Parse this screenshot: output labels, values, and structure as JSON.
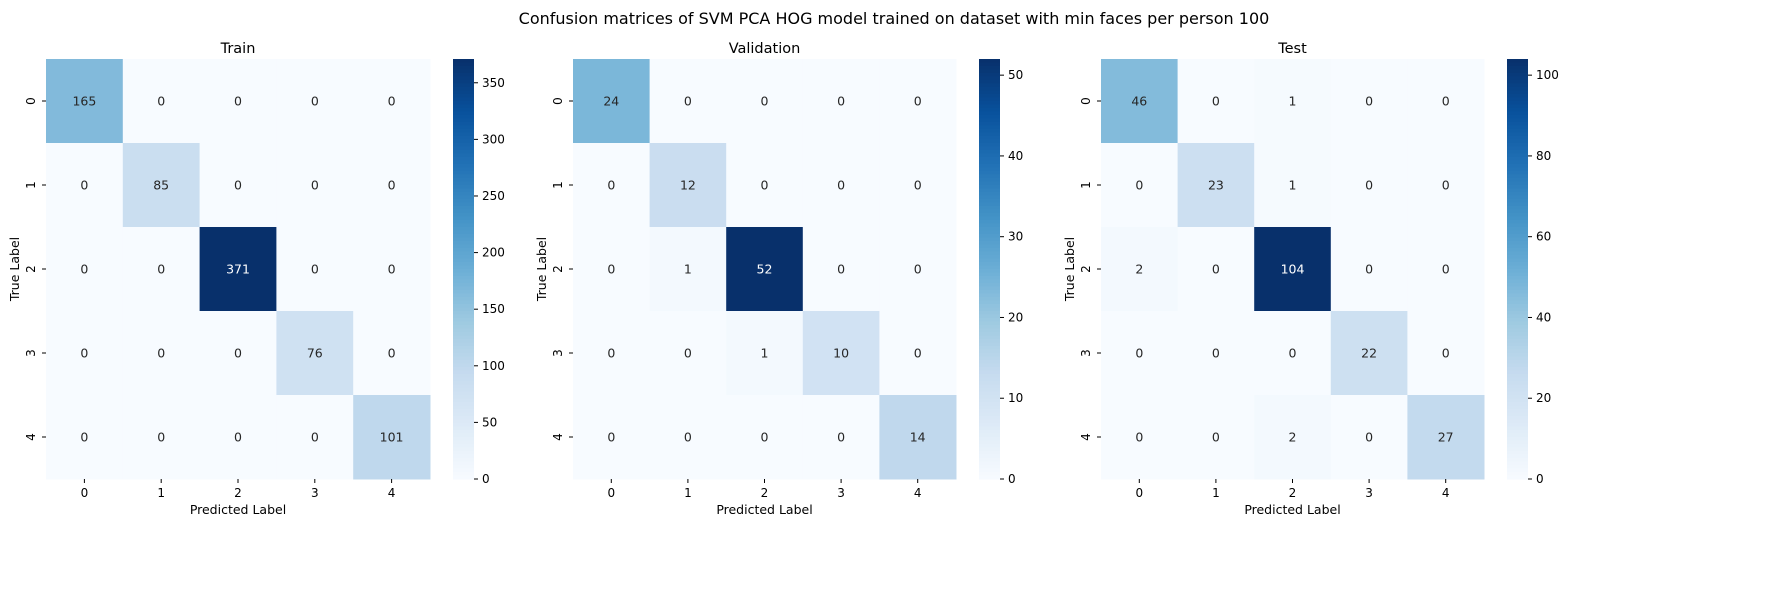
{
  "figure": {
    "suptitle": "Confusion matrices of SVM PCA HOG model trained on dataset with min faces per person 100"
  },
  "colormap": {
    "name": "Blues",
    "stops": [
      "#f7fbff",
      "#deebf7",
      "#c6dbef",
      "#9ecae1",
      "#6baed6",
      "#4292c6",
      "#2171b5",
      "#08519c",
      "#08306b"
    ],
    "text_light": "#ffffff",
    "text_dark": "#262626"
  },
  "chart_data": [
    {
      "type": "heatmap",
      "title": "Train",
      "xlabel": "Predicted Label",
      "ylabel": "True Label",
      "x_categories": [
        "0",
        "1",
        "2",
        "3",
        "4"
      ],
      "y_categories": [
        "0",
        "1",
        "2",
        "3",
        "4"
      ],
      "matrix": [
        [
          165,
          0,
          0,
          0,
          0
        ],
        [
          0,
          85,
          0,
          0,
          0
        ],
        [
          0,
          0,
          371,
          0,
          0
        ],
        [
          0,
          0,
          0,
          76,
          0
        ],
        [
          0,
          0,
          0,
          0,
          101
        ]
      ],
      "color_range": [
        0,
        371
      ],
      "colorbar_ticks": [
        0,
        50,
        100,
        150,
        200,
        250,
        300,
        350
      ]
    },
    {
      "type": "heatmap",
      "title": "Validation",
      "xlabel": "Predicted Label",
      "ylabel": "True Label",
      "x_categories": [
        "0",
        "1",
        "2",
        "3",
        "4"
      ],
      "y_categories": [
        "0",
        "1",
        "2",
        "3",
        "4"
      ],
      "matrix": [
        [
          24,
          0,
          0,
          0,
          0
        ],
        [
          0,
          12,
          0,
          0,
          0
        ],
        [
          0,
          1,
          52,
          0,
          0
        ],
        [
          0,
          0,
          1,
          10,
          0
        ],
        [
          0,
          0,
          0,
          0,
          14
        ]
      ],
      "color_range": [
        0,
        52
      ],
      "colorbar_ticks": [
        0,
        10,
        20,
        30,
        40,
        50
      ]
    },
    {
      "type": "heatmap",
      "title": "Test",
      "xlabel": "Predicted Label",
      "ylabel": "True Label",
      "x_categories": [
        "0",
        "1",
        "2",
        "3",
        "4"
      ],
      "y_categories": [
        "0",
        "1",
        "2",
        "3",
        "4"
      ],
      "matrix": [
        [
          46,
          0,
          1,
          0,
          0
        ],
        [
          0,
          23,
          1,
          0,
          0
        ],
        [
          2,
          0,
          104,
          0,
          0
        ],
        [
          0,
          0,
          0,
          22,
          0
        ],
        [
          0,
          0,
          2,
          0,
          27
        ]
      ],
      "color_range": [
        0,
        104
      ],
      "colorbar_ticks": [
        0,
        20,
        40,
        60,
        80,
        100
      ]
    }
  ]
}
